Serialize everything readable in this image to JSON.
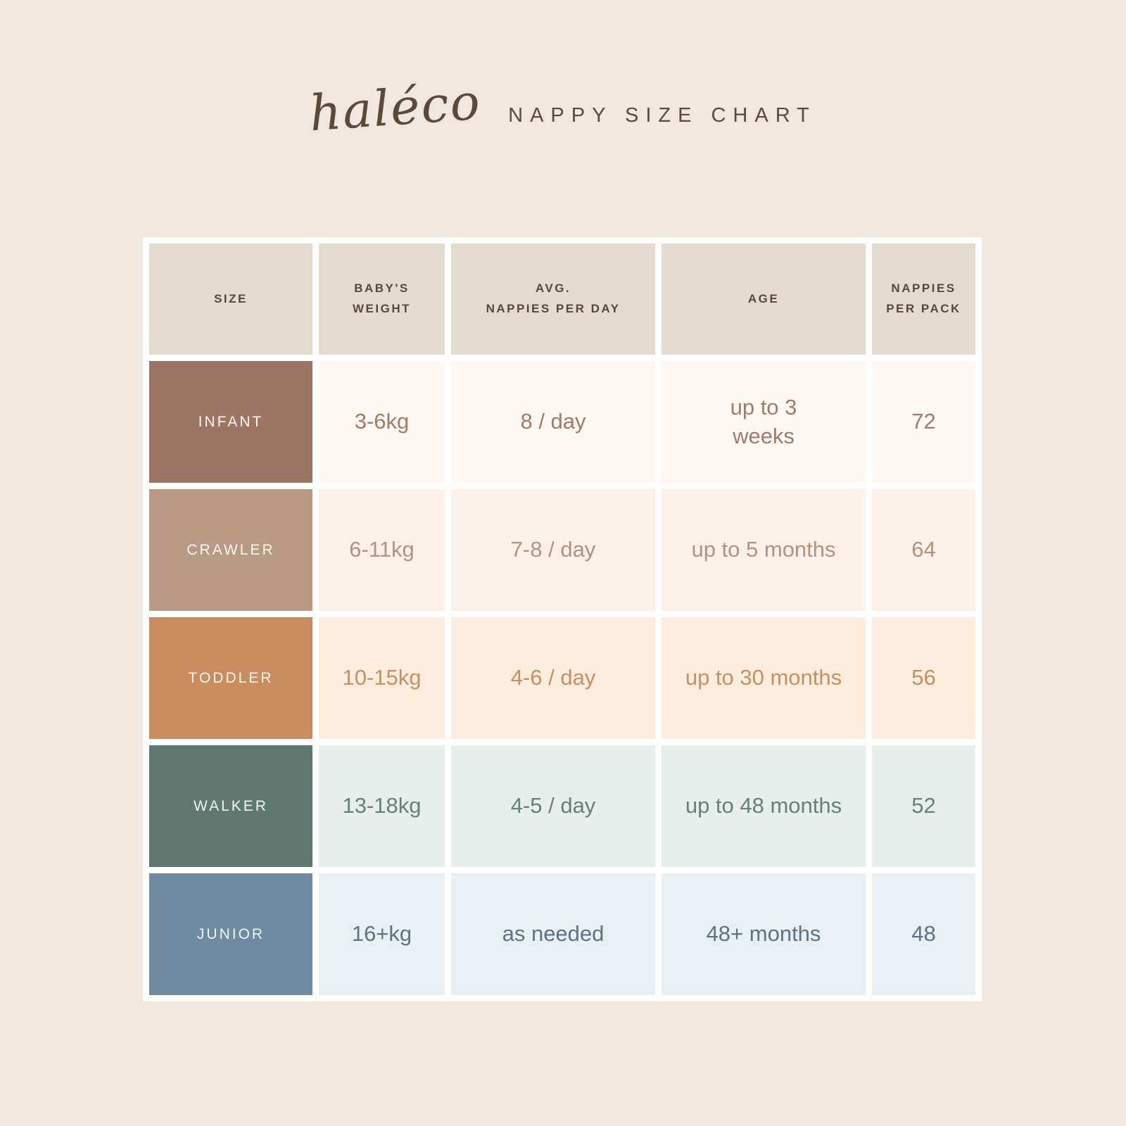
{
  "header": {
    "brand": "haléco",
    "title": "NAPPY SIZE CHART",
    "text_color": "#5a493c"
  },
  "table": {
    "container_bg": "#ffffff",
    "column_headers": {
      "bg": "#e4dcd1",
      "text_color": "#57483a",
      "size": "SIZE",
      "weight": "BABY'S\nWEIGHT",
      "per_day": "AVG.\nNAPPIES PER DAY",
      "age": "AGE",
      "per_pack": "NAPPIES\nPER PACK"
    },
    "rows": [
      {
        "size": "INFANT",
        "weight": "3-6kg",
        "per_day": "8 / day",
        "age": "up to 3\nweeks",
        "per_pack": "72",
        "label_bg": "#9c7565",
        "label_text": "#fbf6f0",
        "cell_bg": "#fef8f2",
        "cell_text": "#a27b67"
      },
      {
        "size": "CRAWLER",
        "weight": "6-11kg",
        "per_day": "7-8 / day",
        "age": "up to 5 months",
        "per_pack": "64",
        "label_bg": "#b99b85",
        "label_text": "#fbf6f0",
        "cell_bg": "#fbf1ea",
        "cell_text": "#b4927b"
      },
      {
        "size": "TODDLER",
        "weight": "10-15kg",
        "per_day": "4-6 / day",
        "age": "up to 30 months",
        "per_pack": "56",
        "label_bg": "#c98d5f",
        "label_text": "#fdf7ef",
        "cell_bg": "#fcedde",
        "cell_text": "#c78f62"
      },
      {
        "size": "WALKER",
        "weight": "13-18kg",
        "per_day": "4-5 / day",
        "age": "up to 48 months",
        "per_pack": "52",
        "label_bg": "#5f7870",
        "label_text": "#f4f6f3",
        "cell_bg": "#e7eeeb",
        "cell_text": "#69807a"
      },
      {
        "size": "JUNIOR",
        "weight": "16+kg",
        "per_day": "as needed",
        "age": "48+ months",
        "per_pack": "48",
        "label_bg": "#6e8ba1",
        "label_text": "#f2f5f7",
        "cell_bg": "#e9f0f4",
        "cell_text": "#5d7380"
      }
    ]
  },
  "chart_data": {
    "type": "table",
    "title": "haléco NAPPY SIZE CHART",
    "columns": [
      "SIZE",
      "BABY'S WEIGHT",
      "AVG. NAPPIES PER DAY",
      "AGE",
      "NAPPIES PER PACK"
    ],
    "rows": [
      [
        "INFANT",
        "3-6kg",
        "8 / day",
        "up to 3 weeks",
        72
      ],
      [
        "CRAWLER",
        "6-11kg",
        "7-8 / day",
        "up to 5 months",
        64
      ],
      [
        "TODDLER",
        "10-15kg",
        "4-6 / day",
        "up to 30 months",
        56
      ],
      [
        "WALKER",
        "13-18kg",
        "4-5 / day",
        "up to 48 months",
        52
      ],
      [
        "JUNIOR",
        "16+kg",
        "as needed",
        "48+ months",
        48
      ]
    ]
  }
}
